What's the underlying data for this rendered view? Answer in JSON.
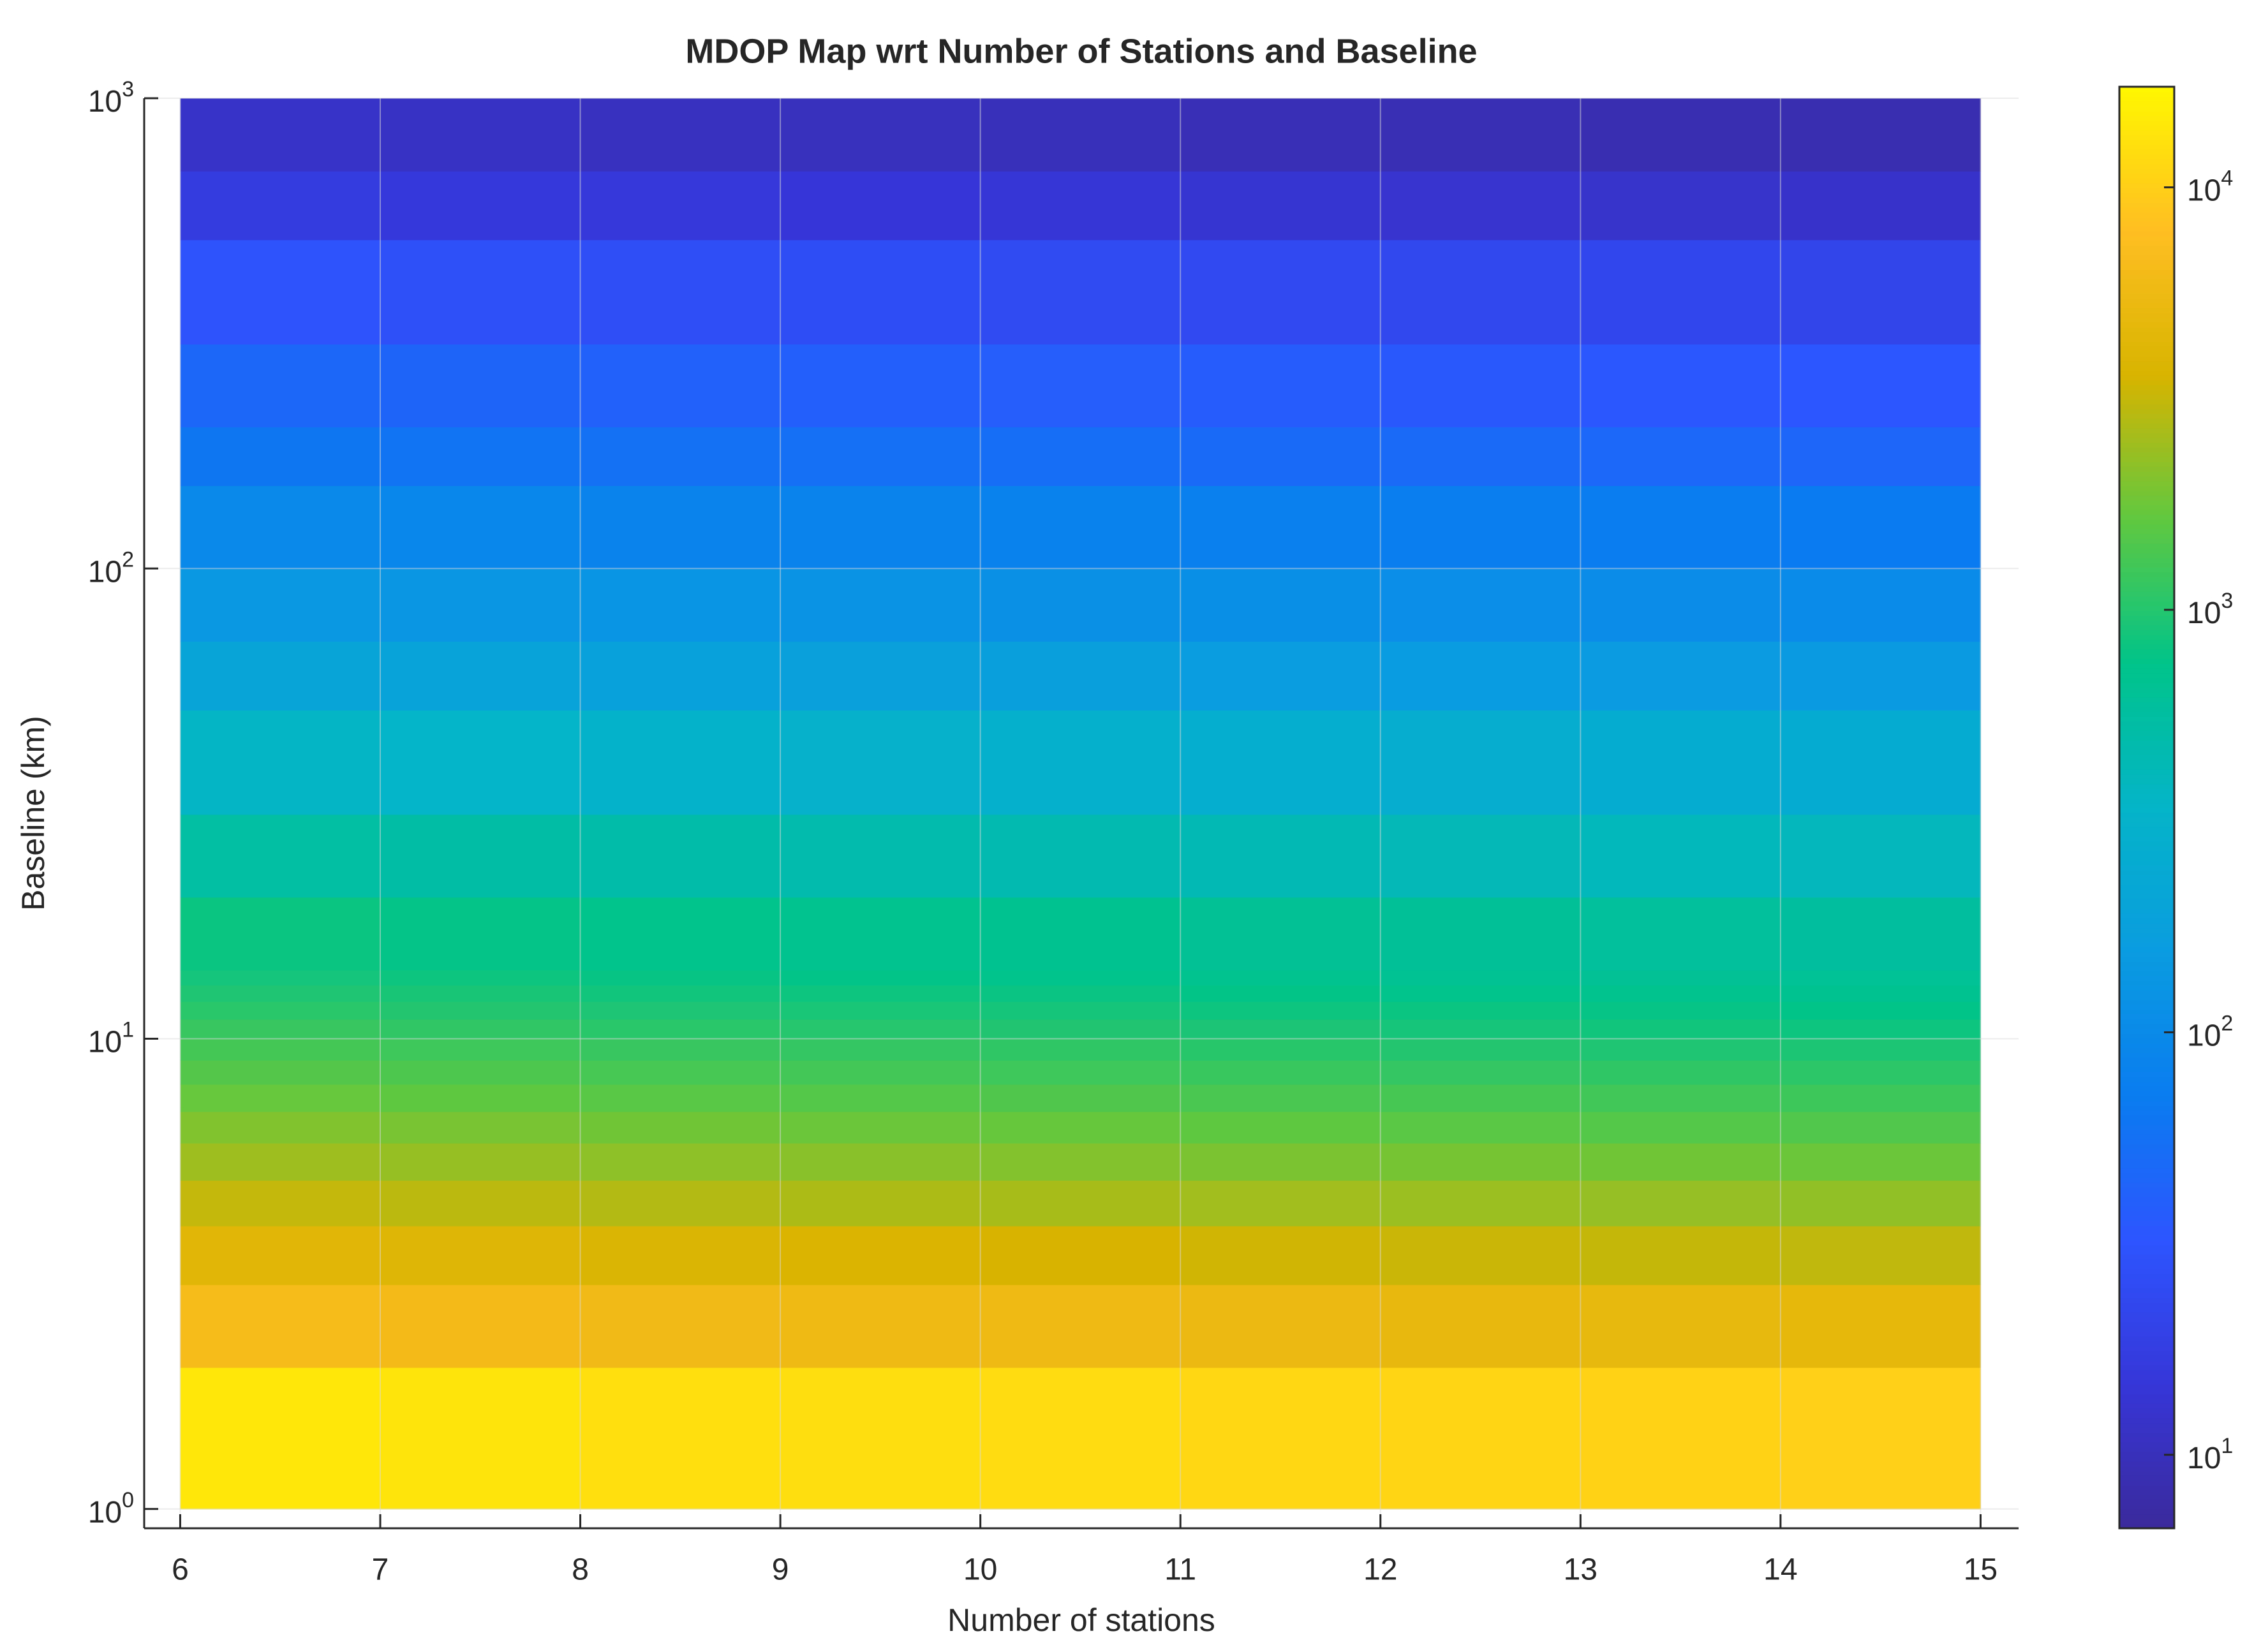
{
  "chart_data": {
    "type": "heatmap",
    "title": "MDOP Map wrt Number of Stations and Baseline",
    "x_label": "Number of stations",
    "y_label": "Baseline (km)",
    "x_edges": [
      6,
      7,
      8,
      9,
      10,
      11,
      12,
      13,
      14,
      15
    ],
    "y_edges": [
      1,
      2,
      3,
      4,
      5,
      6,
      7,
      8,
      9,
      10,
      11,
      12,
      13,
      14,
      20,
      30,
      50,
      70,
      100,
      150,
      200,
      300,
      500,
      700,
      1000
    ],
    "values": [
      [
        14000,
        13300,
        12600,
        12200,
        11800,
        11200,
        10800,
        10400,
        10100
      ],
      [
        6620,
        6290,
        5960,
        5760,
        5560,
        5300,
        5100,
        4900,
        4770
      ],
      [
        4270,
        4060,
        3840,
        3710,
        3590,
        3420,
        3290,
        3160,
        3070
      ],
      [
        3130,
        2970,
        2820,
        2720,
        2630,
        2500,
        2410,
        2320,
        2250
      ],
      [
        2460,
        2340,
        2210,
        2140,
        2070,
        1970,
        1890,
        1820,
        1770
      ],
      [
        2020,
        1920,
        1820,
        1760,
        1700,
        1620,
        1560,
        1490,
        1450
      ],
      [
        1710,
        1620,
        1540,
        1490,
        1440,
        1370,
        1320,
        1270,
        1230
      ],
      [
        1480,
        1410,
        1330,
        1290,
        1240,
        1180,
        1140,
        1100,
        1070
      ],
      [
        1310,
        1240,
        1170,
        1140,
        1100,
        1040,
        1000,
        966,
        940
      ],
      [
        1170,
        1110,
        1050,
        1010,
        979,
        932,
        897,
        862,
        839
      ],
      [
        1050,
        998,
        945,
        914,
        882,
        840,
        809,
        777,
        756
      ],
      [
        960,
        912,
        864,
        835,
        806,
        768,
        739,
        710,
        691
      ],
      [
        880,
        836,
        792,
        766,
        739,
        704,
        678,
        651,
        634
      ],
      [
        810,
        770,
        729,
        705,
        680,
        648,
        624,
        599,
        583
      ],
      [
        550,
        523,
        495,
        479,
        462,
        440,
        424,
        407,
        396
      ],
      [
        354,
        336,
        319,
        308,
        297,
        283,
        273,
        262,
        255
      ],
      [
        204,
        194,
        184,
        177,
        171,
        163,
        157,
        151,
        147
      ],
      [
        142,
        135,
        128,
        124,
        119,
        114,
        109,
        105,
        102
      ],
      [
        97,
        92,
        87,
        84,
        81,
        78,
        75,
        72,
        70
      ],
      [
        63,
        60,
        57,
        55,
        53,
        50,
        49,
        47,
        45
      ],
      [
        46,
        44,
        41,
        40,
        39,
        37,
        35,
        34,
        33
      ],
      [
        30,
        28.5,
        27,
        26,
        25,
        24,
        23,
        22,
        21.6
      ],
      [
        17,
        16,
        15.3,
        14.8,
        14.3,
        13.6,
        13.1,
        12.6,
        12.2
      ],
      [
        11.9,
        11.3,
        10.7,
        10.4,
        10,
        9.5,
        9.2,
        8.8,
        8.6
      ]
    ],
    "xlim": [
      5.82,
      15.19
    ],
    "ylim": [
      0.91,
      1000
    ],
    "y_scale": "log",
    "xticks": [
      6,
      7,
      8,
      9,
      10,
      11,
      12,
      13,
      14,
      15
    ],
    "yticks": [
      {
        "value": 1,
        "label": "10",
        "exponent": "0"
      },
      {
        "value": 10,
        "label": "10",
        "exponent": "1"
      },
      {
        "value": 100,
        "label": "10",
        "exponent": "2"
      },
      {
        "value": 1000,
        "label": "10",
        "exponent": "3"
      }
    ],
    "grid": true,
    "colorbar": {
      "scale": "log",
      "clim": [
        6.7,
        17300
      ],
      "ticks": [
        {
          "value": 10,
          "label": "10",
          "exponent": "1"
        },
        {
          "value": 100,
          "label": "10",
          "exponent": "2"
        },
        {
          "value": 1000,
          "label": "10",
          "exponent": "3"
        },
        {
          "value": 10000,
          "label": "10",
          "exponent": "4"
        }
      ]
    },
    "colormap": [
      "#3b2a9c",
      "#3636d8",
      "#2d55ff",
      "#0a7cf0",
      "#0a9ce0",
      "#04b4c8",
      "#00c48a",
      "#60c840",
      "#d8b400",
      "#ffbe22",
      "#fff700"
    ]
  }
}
